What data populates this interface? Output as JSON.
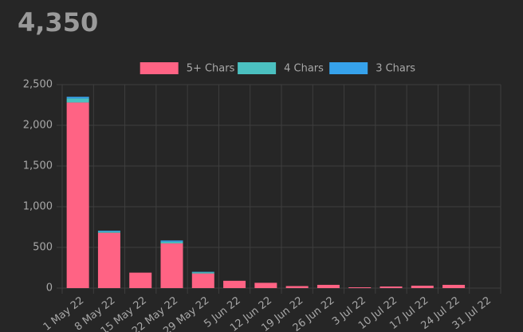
{
  "total": "4,350",
  "chart_data": {
    "type": "stacked_bar",
    "categories": [
      "1 May 22",
      "8 May 22",
      "15 May 22",
      "22 May 22",
      "29 May 22",
      "5 Jun 22",
      "12 Jun 22",
      "19 Jun 22",
      "26 Jun 22",
      "3 Jul 22",
      "10 Jul 22",
      "17 Jul 22",
      "24 Jul 22",
      "31 Jul 22"
    ],
    "series": [
      {
        "name": "5+ Chars",
        "color": "#ff6384",
        "values": [
          2280,
          680,
          190,
          550,
          180,
          90,
          65,
          25,
          40,
          10,
          20,
          30,
          40,
          0
        ]
      },
      {
        "name": "4 Chars",
        "color": "#4bc0c0",
        "values": [
          50,
          15,
          0,
          20,
          15,
          0,
          0,
          0,
          0,
          0,
          0,
          0,
          0,
          0
        ]
      },
      {
        "name": "3 Chars",
        "color": "#36a2eb",
        "values": [
          20,
          10,
          0,
          15,
          5,
          0,
          0,
          0,
          0,
          0,
          0,
          0,
          0,
          0
        ]
      }
    ],
    "ylim": [
      0,
      2500
    ],
    "yticks": [
      0,
      500,
      {
        "value": 1000,
        "label": "1,000"
      },
      {
        "value": 1500,
        "label": "1,500"
      },
      {
        "value": 2000,
        "label": "2,000"
      },
      {
        "value": 2500,
        "label": "2,500"
      }
    ],
    "grid": true,
    "legend": "top"
  }
}
